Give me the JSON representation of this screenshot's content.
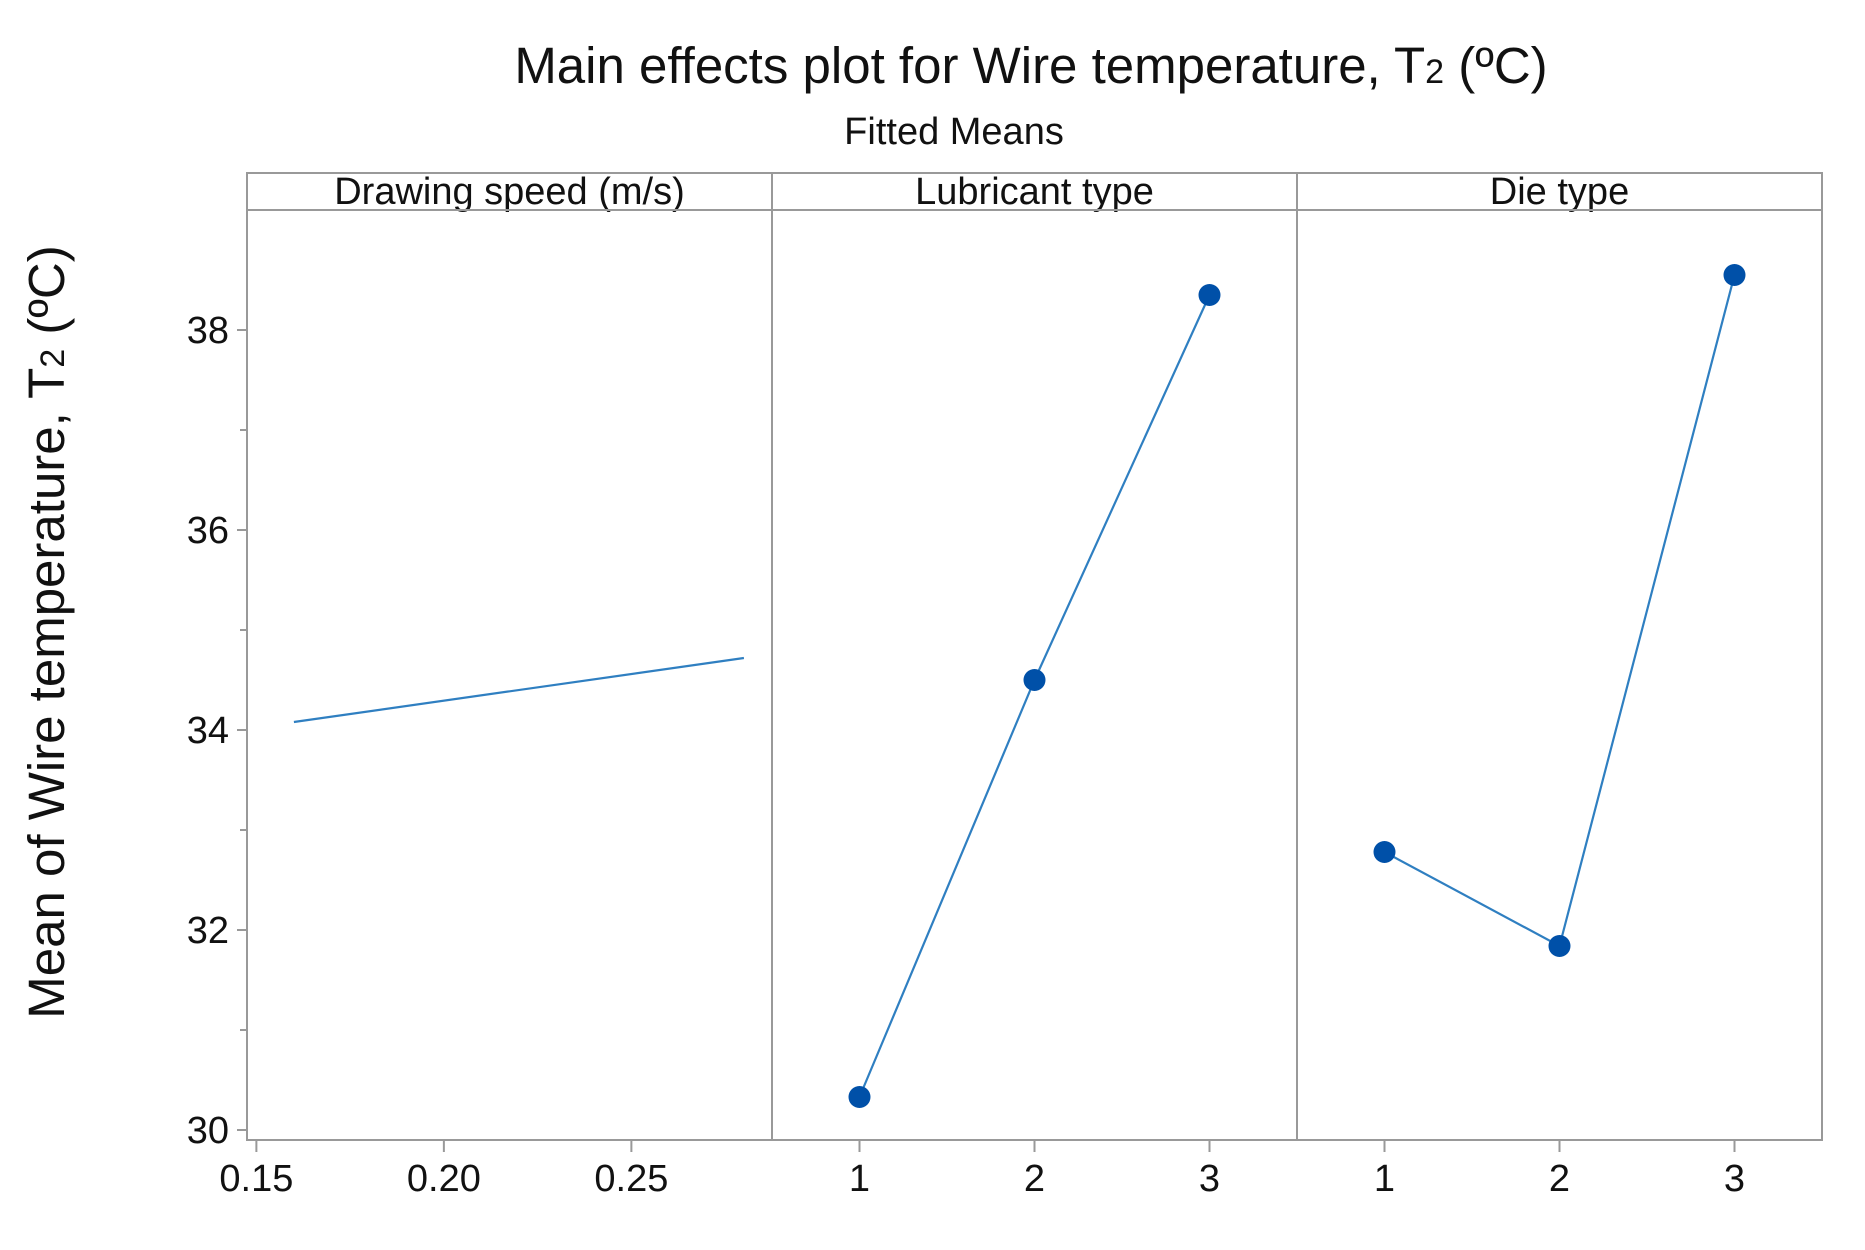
{
  "chart_data": {
    "type": "line",
    "title": "Main effects plot for Wire temperature, T",
    "title_subscript": "2",
    "title_unit": " (ºC)",
    "subtitle": "Fitted Means",
    "ylabel": "Mean of Wire temperature, T",
    "ylabel_subscript": "2",
    "ylabel_unit": " (ºC)",
    "ylim": [
      29.9,
      39.2
    ],
    "yticks": [
      30,
      32,
      34,
      36,
      38
    ],
    "yticks_minor": [
      31,
      33,
      35,
      37
    ],
    "colors": {
      "line": "#2f7fc1",
      "marker": "#0050a8",
      "frame": "#999999",
      "strip": "#ffffff"
    },
    "panels": [
      {
        "name": "Drawing speed (m/s)",
        "xlim": [
          0.1475,
          0.2875
        ],
        "xticks": [
          "0.15",
          "0.20",
          "0.25"
        ],
        "xtick_values": [
          0.15,
          0.2,
          0.25
        ],
        "x": [
          0.16,
          0.28
        ],
        "values": [
          34.08,
          34.72
        ],
        "markers": false
      },
      {
        "name": "Lubricant type",
        "xlim": [
          0.5,
          3.5
        ],
        "xticks": [
          "1",
          "2",
          "3"
        ],
        "xtick_values": [
          1,
          2,
          3
        ],
        "x": [
          1,
          2,
          3
        ],
        "values": [
          30.33,
          34.5,
          38.35
        ],
        "markers": true
      },
      {
        "name": "Die type",
        "xlim": [
          0.5,
          3.5
        ],
        "xticks": [
          "1",
          "2",
          "3"
        ],
        "xtick_values": [
          1,
          2,
          3
        ],
        "x": [
          1,
          2,
          3
        ],
        "values": [
          32.78,
          31.84,
          38.55
        ],
        "markers": true
      }
    ]
  }
}
